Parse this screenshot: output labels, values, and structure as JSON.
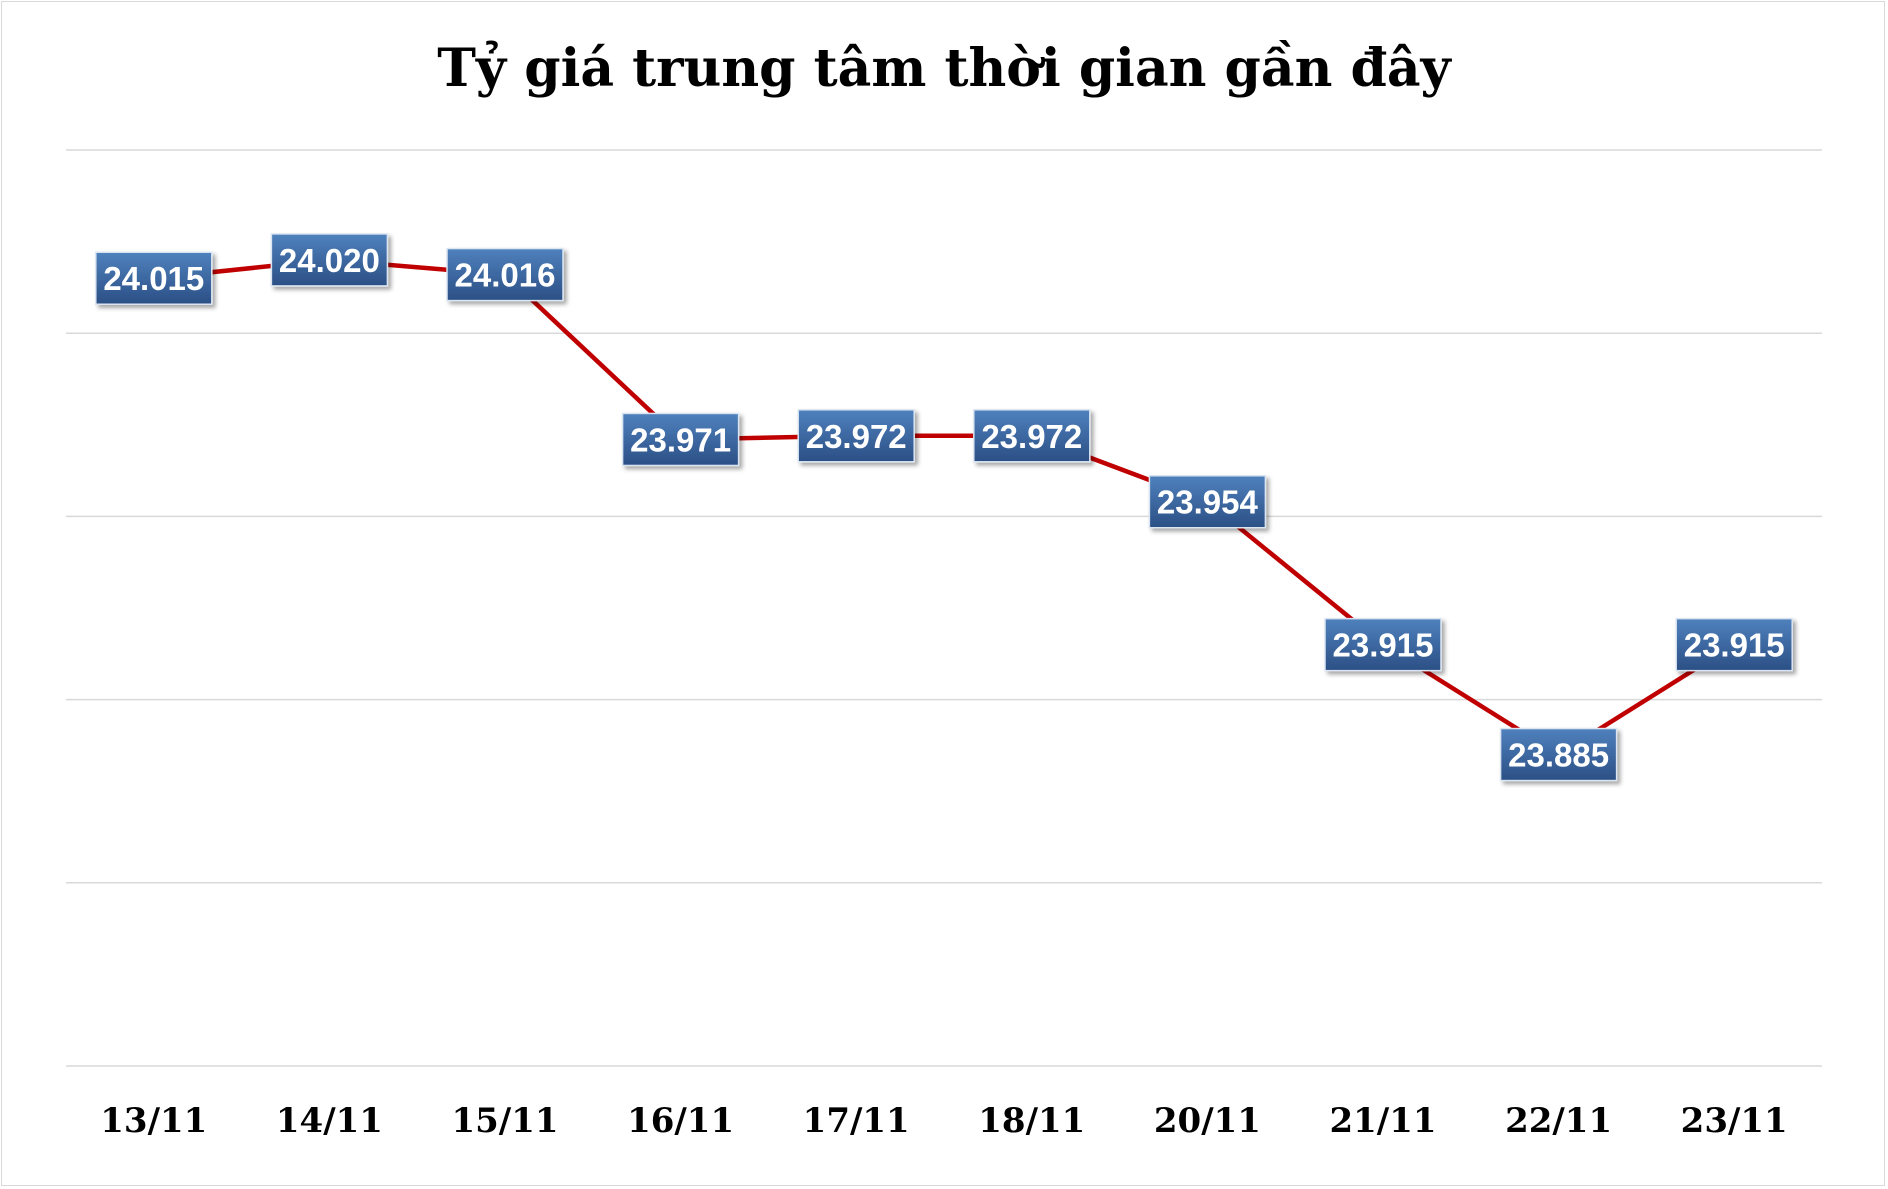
{
  "chart_data": {
    "type": "line",
    "title": "Tỷ giá trung tâm thời gian gần đây",
    "xlabel": "",
    "ylabel": "",
    "categories": [
      "13/11",
      "14/11",
      "15/11",
      "16/11",
      "17/11",
      "18/11",
      "20/11",
      "21/11",
      "22/11",
      "23/11"
    ],
    "series": [
      {
        "values": [
          24015,
          24020,
          24016,
          23971,
          23972,
          23972,
          23954,
          23915,
          23885,
          23915
        ],
        "labels": [
          "24.015",
          "24.020",
          "24.016",
          "23.971",
          "23.972",
          "23.972",
          "23.954",
          "23.915",
          "23.885",
          "23.915"
        ]
      }
    ],
    "ylim": [
      23800,
      24050
    ],
    "grid": true,
    "legend": "none",
    "colors": {
      "line": "#c00000",
      "label_box_top": "#4f81bd",
      "label_box_bottom": "#2b4f85",
      "gridline": "#d9d9d9"
    }
  }
}
